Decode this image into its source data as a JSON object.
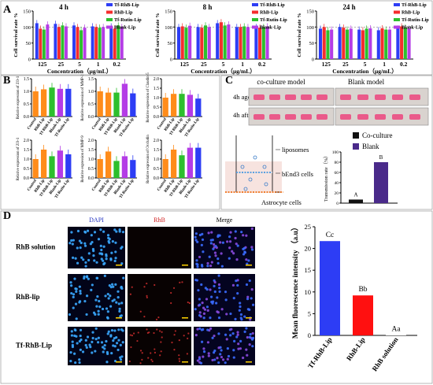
{
  "colors": {
    "blue": "#2d3df5",
    "red": "#f52d2d",
    "green": "#2dbf2d",
    "purple": "#b43ce6",
    "orange": "#ff8c1a",
    "dark_purple": "#4a2a8a"
  },
  "panel_labels": [
    "A",
    "B",
    "C",
    "D"
  ],
  "panel_a": {
    "ylabel": "Cell survival rate %",
    "xlabel": "Concentration（μg/mL）",
    "legend": [
      "Tf-RhB-Lip",
      "RhB-Lip",
      "Tf-Rutin-Lip",
      "Blank-Lip"
    ],
    "categories": [
      "125",
      "25",
      "5",
      "1",
      "0.2"
    ],
    "y_ticks": [
      "0",
      "50",
      "100",
      "150"
    ],
    "charts": [
      {
        "title": "4 h",
        "chart_data": {
          "type": "bar",
          "ylim": [
            0,
            150
          ],
          "categories": [
            "125",
            "25",
            "5",
            "1",
            "0.2"
          ],
          "series": [
            {
              "name": "Tf-RhB-Lip",
              "values": [
                112,
                110,
                105,
                102,
                102
              ]
            },
            {
              "name": "RhB-Lip",
              "values": [
                95,
                100,
                100,
                100,
                95
              ]
            },
            {
              "name": "Tf-Rutin-Lip",
              "values": [
                92,
                105,
                90,
                98,
                105
              ]
            },
            {
              "name": "Blank-Lip",
              "values": [
                108,
                102,
                98,
                100,
                100
              ]
            }
          ]
        }
      },
      {
        "title": "8 h",
        "chart_data": {
          "type": "bar",
          "ylim": [
            0,
            150
          ],
          "categories": [
            "125",
            "25",
            "5",
            "1",
            "0.2"
          ],
          "series": [
            {
              "name": "Tf-RhB-Lip",
              "values": [
                100,
                100,
                112,
                100,
                100
              ]
            },
            {
              "name": "RhB-Lip",
              "values": [
                102,
                98,
                115,
                100,
                98
              ]
            },
            {
              "name": "Tf-Rutin-Lip",
              "values": [
                98,
                105,
                105,
                102,
                100
              ]
            },
            {
              "name": "Blank-Lip",
              "values": [
                104,
                100,
                108,
                100,
                102
              ]
            }
          ]
        }
      },
      {
        "title": "24 h",
        "chart_data": {
          "type": "bar",
          "ylim": [
            0,
            150
          ],
          "categories": [
            "125",
            "25",
            "5",
            "1",
            "0.2"
          ],
          "series": [
            {
              "name": "Tf-RhB-Lip",
              "values": [
                95,
                100,
                92,
                90,
                95
              ]
            },
            {
              "name": "RhB-Lip",
              "values": [
                100,
                98,
                90,
                96,
                102
              ]
            },
            {
              "name": "Tf-Rutin-Lip",
              "values": [
                90,
                92,
                95,
                92,
                98
              ]
            },
            {
              "name": "Blank-Lip",
              "values": [
                92,
                95,
                96,
                92,
                95
              ]
            }
          ]
        }
      }
    ]
  },
  "panel_b": {
    "categories": [
      "Control",
      "RhB-Lip",
      "Tf-RhB-Lip",
      "Blank-Lip",
      "Tf-Rutin-Lip"
    ],
    "bar_colors": [
      "#ff8c1a",
      "#ff8c1a",
      "#2dbf2d",
      "#b43ce6",
      "#2d3df5"
    ],
    "charts": [
      {
        "ylabel": "Relative expression of ZO-1",
        "ylim": [
          0,
          1.5
        ],
        "yticks": [
          "0.0",
          "0.5",
          "1.0",
          "1.5"
        ],
        "values": [
          1.0,
          1.08,
          1.15,
          1.1,
          1.1
        ]
      },
      {
        "ylabel": "Relative expression of MMP-2",
        "ylim": [
          0,
          1.5
        ],
        "yticks": [
          "0.0",
          "0.5",
          "1.0",
          "1.5"
        ],
        "values": [
          1.0,
          0.95,
          0.95,
          1.3,
          0.92
        ]
      },
      {
        "ylabel": "Relative expression of Claudin-5",
        "ylim": [
          0,
          2.0
        ],
        "yticks": [
          "0.0",
          "0.5",
          "1.0",
          "1.5",
          "2.0"
        ],
        "values": [
          1.0,
          1.2,
          1.2,
          1.15,
          0.95
        ]
      },
      {
        "ylabel": "Relative expression of ZO-1",
        "ylim": [
          0,
          2.0
        ],
        "yticks": [
          "0.0",
          "0.5",
          "1.0",
          "1.5",
          "2.0"
        ],
        "values": [
          1.0,
          1.5,
          1.15,
          1.45,
          1.25
        ]
      },
      {
        "ylabel": "Relative expression of MMP-9",
        "ylim": [
          0,
          2.0
        ],
        "yticks": [
          "0.0",
          "0.5",
          "1.0",
          "1.5",
          "2.0"
        ],
        "values": [
          1.0,
          1.4,
          0.9,
          1.15,
          0.95
        ]
      },
      {
        "ylabel": "Relative expression of Occludin",
        "ylim": [
          0,
          2.0
        ],
        "yticks": [
          "0.0",
          "0.5",
          "1.0",
          "1.5",
          "2.0"
        ],
        "values": [
          1.0,
          1.5,
          1.2,
          1.6,
          1.6
        ]
      }
    ]
  },
  "panel_c": {
    "col_titles": [
      "co-culture model",
      "Blank model"
    ],
    "row_labels": [
      "4h ago",
      "4h after"
    ],
    "diagram_labels": [
      "liposomes",
      "bEnd3 cells",
      "Astrocyte cells"
    ],
    "legend": [
      "Co-culture",
      "Blank"
    ],
    "ylabel": "Transmission rate（%）",
    "yticks": [
      "0",
      "20",
      "40",
      "60",
      "80",
      "100"
    ],
    "chart_data": {
      "type": "bar",
      "categories": [
        "Co-culture",
        "Blank"
      ],
      "values": [
        7,
        80
      ],
      "ylim": [
        0,
        100
      ],
      "letters": [
        "A",
        "B"
      ]
    }
  },
  "panel_d": {
    "col_titles": [
      "DAPI",
      "RhB",
      "Merge"
    ],
    "row_labels": [
      "RhB solution",
      "RhB-lip",
      "Tf-RhB-Lip"
    ],
    "ylabel": "Mean fluorescence intensity （a.u）",
    "yticks": [
      "0",
      "5",
      "10",
      "15",
      "20",
      "25"
    ],
    "chart_data": {
      "type": "bar",
      "categories": [
        "Tf-RhB-Lip",
        "RhB-Lip",
        "RhB solution"
      ],
      "values": [
        21.7,
        9.2,
        0.1
      ],
      "ylim": [
        0,
        25
      ],
      "letters": [
        "Cc",
        "Bb",
        "Aa"
      ]
    }
  }
}
